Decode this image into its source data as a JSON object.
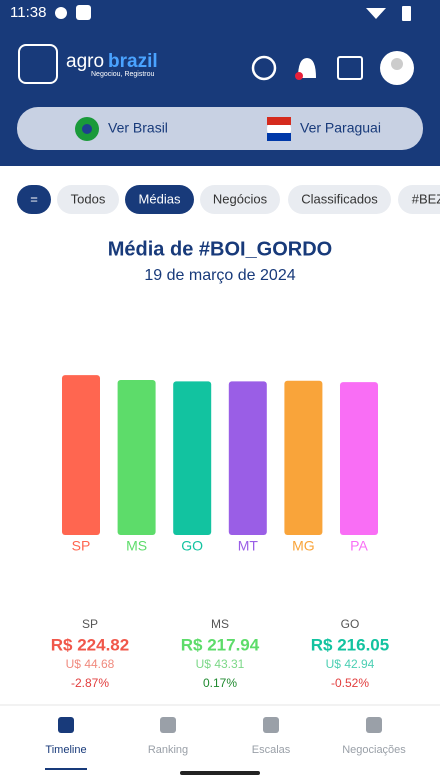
{
  "status_bar": {
    "time": "11:38"
  },
  "header": {
    "logo_first": "agro",
    "logo_second": "brazil",
    "tagline": "Negociou, Registrou"
  },
  "toggle": {
    "left": "Ver Brasil",
    "right": "Ver Paraguai"
  },
  "chips": [
    "=",
    "Todos",
    "Médias",
    "Negócios",
    "Classificados",
    "#BEZ"
  ],
  "chart_data": {
    "type": "bar",
    "title": "Média de #BOI_GORDO",
    "subtitle": "19 de março de 2024",
    "categories": [
      "SP",
      "MS",
      "GO",
      "MT",
      "MG",
      "PA"
    ],
    "values": [
      224.82,
      217.94,
      216.05,
      216,
      217,
      215
    ],
    "colors": [
      "#ff6650",
      "#5ddc6a",
      "#12c3a0",
      "#9a5ee6",
      "#f9a43a",
      "#f96ef5"
    ],
    "ylim": [
      0,
      225
    ]
  },
  "cards": [
    {
      "region": "SP",
      "price": "R$ 224.82",
      "usd": "U$ 44.68",
      "change": "-2.87%"
    },
    {
      "region": "MS",
      "price": "R$ 217.94",
      "usd": "U$ 43.31",
      "change": "0.17%"
    },
    {
      "region": "GO",
      "price": "R$ 216.05",
      "usd": "U$ 42.94",
      "change": "-0.52%"
    }
  ],
  "nav": [
    "Timeline",
    "Ranking",
    "Escalas",
    "Negociações"
  ]
}
